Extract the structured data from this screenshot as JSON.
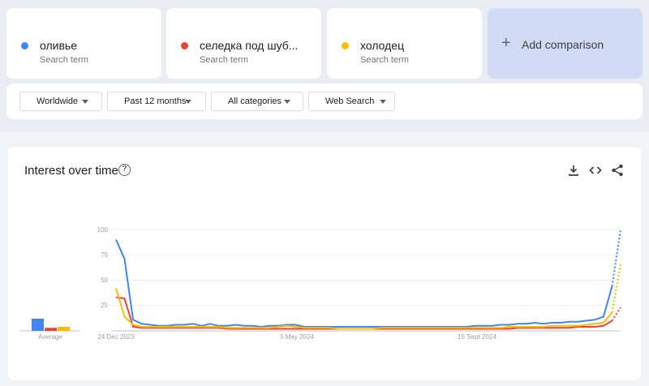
{
  "terms": [
    {
      "name": "оливье",
      "sub": "Search term",
      "color": "#4285f4"
    },
    {
      "name": "селедка под шуб...",
      "sub": "Search term",
      "color": "#ea4335"
    },
    {
      "name": "холодец",
      "sub": "Search term",
      "color": "#fbbc04"
    }
  ],
  "add_comparison": {
    "label": "Add comparison",
    "icon": "plus-icon"
  },
  "filters": [
    {
      "label": "Worldwide"
    },
    {
      "label": "Past 12 months"
    },
    {
      "label": "All categories"
    },
    {
      "label": "Web Search"
    }
  ],
  "panel": {
    "title": "Interest over time",
    "help_icon": "?",
    "tools": [
      "download-icon",
      "embed-icon",
      "share-icon"
    ]
  },
  "chart_data": {
    "type": "line",
    "yticks": [
      "100",
      "75",
      "50",
      "25"
    ],
    "ylim": [
      0,
      100
    ],
    "xticks": [
      "24 Dec 2023",
      "5 May 2024",
      "15 Sept 2024"
    ],
    "average_label": "Average",
    "averages": [
      12,
      3,
      4
    ],
    "grid": true,
    "series": [
      {
        "color": "#4285f4",
        "values": [
          90,
          71,
          11,
          7,
          6,
          5,
          5,
          6,
          6,
          7,
          5,
          7,
          5,
          5,
          6,
          5,
          5,
          4,
          5,
          5,
          6,
          6,
          4,
          4,
          4,
          4,
          4,
          4,
          4,
          4,
          4,
          4,
          4,
          4,
          4,
          4,
          4,
          4,
          4,
          4,
          4,
          4,
          5,
          5,
          5,
          6,
          6,
          7,
          7,
          8,
          7,
          8,
          8,
          9,
          9,
          10,
          11,
          14,
          44
        ],
        "partial": [
          44,
          100
        ]
      },
      {
        "color": "#ea4335",
        "values": [
          33,
          32,
          4,
          3,
          3,
          3,
          3,
          3,
          3,
          3,
          3,
          3,
          3,
          2,
          2,
          2,
          2,
          2,
          2,
          2,
          2,
          2,
          2,
          2,
          2,
          2,
          2,
          2,
          2,
          2,
          2,
          2,
          2,
          2,
          2,
          2,
          2,
          2,
          2,
          2,
          2,
          2,
          2,
          2,
          2,
          2,
          2,
          3,
          3,
          3,
          3,
          3,
          3,
          3,
          4,
          4,
          4,
          5,
          10
        ],
        "partial": [
          10,
          23
        ]
      },
      {
        "color": "#fbbc04",
        "values": [
          42,
          14,
          6,
          4,
          4,
          4,
          4,
          4,
          4,
          4,
          4,
          4,
          4,
          3,
          3,
          3,
          3,
          3,
          3,
          4,
          5,
          4,
          3,
          3,
          3,
          3,
          2,
          2,
          2,
          2,
          2,
          3,
          3,
          3,
          3,
          3,
          3,
          3,
          3,
          3,
          3,
          3,
          3,
          3,
          3,
          3,
          4,
          4,
          4,
          4,
          4,
          5,
          5,
          5,
          5,
          6,
          7,
          8,
          18
        ],
        "partial": [
          18,
          66
        ]
      }
    ]
  }
}
